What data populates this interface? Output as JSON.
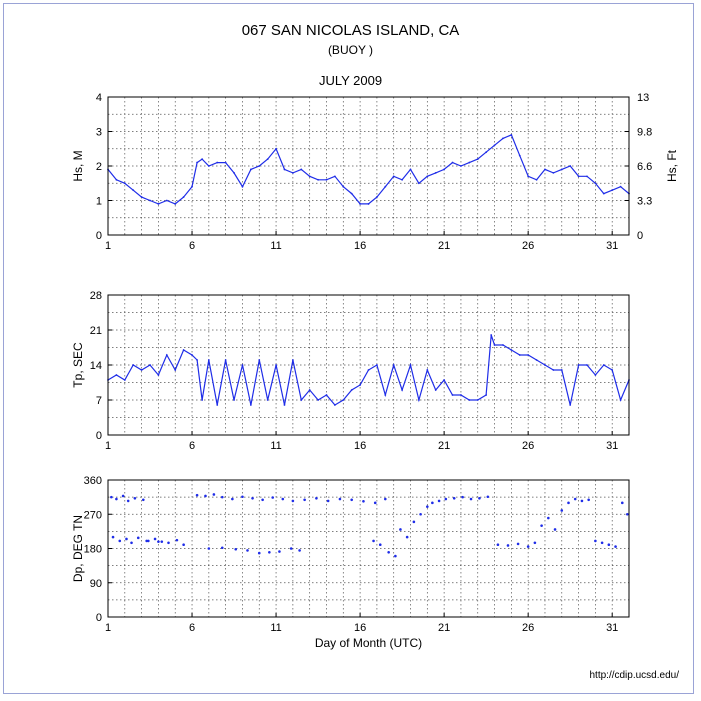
{
  "header": {
    "station": "067 SAN NICOLAS ISLAND, CA",
    "subtitle": "(BUOY )",
    "month": "JULY 2009"
  },
  "footer": {
    "credit": "http://cdip.ucsd.edu/"
  },
  "colors": {
    "series": "#1f2de8",
    "grid": "#555555",
    "axis": "#000000"
  },
  "chart_data": [
    {
      "type": "line",
      "ylabel": "Hs, M",
      "ylabel_right": "Hs, Ft",
      "xlim": [
        1,
        32
      ],
      "ylim": [
        0,
        4
      ],
      "yticks": [
        0,
        1,
        2,
        3,
        4
      ],
      "yticks_right_labels": [
        "0",
        "3.3",
        "6.6",
        "9.8",
        "13"
      ],
      "xticks": [
        1,
        6,
        11,
        16,
        21,
        26,
        31
      ],
      "grid": true,
      "x": [
        1,
        1.5,
        2,
        2.5,
        3,
        3.5,
        4,
        4.5,
        5,
        5.5,
        6,
        6.3,
        6.6,
        7,
        7.5,
        8,
        8.5,
        9,
        9.5,
        10,
        10.5,
        11,
        11.5,
        12,
        12.5,
        13,
        13.5,
        14,
        14.5,
        15,
        15.5,
        16,
        16.5,
        17,
        17.5,
        18,
        18.5,
        19,
        19.5,
        20,
        20.5,
        21,
        21.5,
        22,
        22.5,
        23,
        23.5,
        24,
        24.5,
        25,
        25.5,
        26,
        26.5,
        27,
        27.5,
        28,
        28.5,
        29,
        29.5,
        30,
        30.5,
        31,
        31.5,
        32
      ],
      "y": [
        1.9,
        1.6,
        1.5,
        1.3,
        1.1,
        1.0,
        0.9,
        1.0,
        0.9,
        1.1,
        1.4,
        2.1,
        2.2,
        2.0,
        2.1,
        2.1,
        1.8,
        1.4,
        1.9,
        2.0,
        2.2,
        2.5,
        1.9,
        1.8,
        1.9,
        1.7,
        1.6,
        1.6,
        1.7,
        1.4,
        1.2,
        0.9,
        0.9,
        1.1,
        1.4,
        1.7,
        1.6,
        1.9,
        1.5,
        1.7,
        1.8,
        1.9,
        2.1,
        2.0,
        2.1,
        2.2,
        2.4,
        2.6,
        2.8,
        2.9,
        2.3,
        1.7,
        1.6,
        1.9,
        1.8,
        1.9,
        2.0,
        1.7,
        1.7,
        1.5,
        1.2,
        1.3,
        1.4,
        1.2
      ]
    },
    {
      "type": "line",
      "ylabel": "Tp, SEC",
      "xlim": [
        1,
        32
      ],
      "ylim": [
        0,
        28
      ],
      "yticks": [
        0,
        7,
        14,
        21,
        28
      ],
      "xticks": [
        1,
        6,
        11,
        16,
        21,
        26,
        31
      ],
      "grid": true,
      "x": [
        1,
        1.5,
        2,
        2.5,
        3,
        3.5,
        4,
        4.5,
        5,
        5.5,
        6,
        6.3,
        6.6,
        7,
        7.5,
        8,
        8.5,
        9,
        9.5,
        10,
        10.5,
        11,
        11.5,
        12,
        12.5,
        13,
        13.5,
        14,
        14.5,
        15,
        15.5,
        16,
        16.5,
        17,
        17.5,
        18,
        18.5,
        19,
        19.5,
        20,
        20.5,
        21,
        21.5,
        22,
        22.5,
        23,
        23.5,
        23.8,
        24,
        24.5,
        25,
        25.5,
        26,
        26.5,
        27,
        27.5,
        28,
        28.5,
        29,
        29.5,
        30,
        30.5,
        31,
        31.5,
        32
      ],
      "y": [
        11,
        12,
        11,
        14,
        13,
        14,
        12,
        16,
        13,
        17,
        16,
        15,
        7,
        15,
        6,
        15,
        7,
        14,
        6,
        15,
        7,
        14,
        6,
        15,
        7,
        9,
        7,
        8,
        6,
        7,
        9,
        10,
        13,
        14,
        8,
        14,
        9,
        14,
        7,
        13,
        9,
        11,
        8,
        8,
        7,
        7,
        8,
        20,
        18,
        18,
        17,
        16,
        16,
        15,
        14,
        13,
        13,
        6,
        14,
        14,
        12,
        14,
        13,
        7,
        11
      ]
    },
    {
      "type": "scatter",
      "ylabel": "Dp, DEG TN",
      "xlabel": "Day of Month (UTC)",
      "xlim": [
        1,
        32
      ],
      "ylim": [
        0,
        360
      ],
      "yticks": [
        0,
        90,
        180,
        270,
        360
      ],
      "xticks": [
        1,
        6,
        11,
        16,
        21,
        26,
        31
      ],
      "grid": true,
      "x": [
        1.2,
        1.5,
        1.9,
        2.2,
        2.6,
        3.1,
        3.4,
        3.8,
        4.2,
        4.6,
        5.1,
        5.5,
        1.3,
        1.7,
        2.1,
        2.4,
        2.8,
        3.3,
        4.0,
        6.3,
        6.8,
        7.3,
        7.8,
        8.4,
        9.0,
        9.6,
        10.2,
        10.8,
        11.4,
        12.0,
        12.7,
        13.4,
        14.1,
        14.8,
        15.5,
        16.2,
        16.9,
        17.5,
        7.0,
        7.8,
        8.6,
        9.3,
        10.0,
        10.6,
        11.2,
        11.9,
        12.4,
        16.8,
        17.2,
        17.7,
        18.1,
        18.4,
        18.8,
        19.2,
        19.6,
        20.0,
        20.3,
        20.7,
        21.1,
        21.6,
        22.1,
        22.6,
        23.1,
        23.6,
        24.2,
        24.8,
        25.4,
        26.0,
        26.4,
        26.8,
        27.2,
        27.6,
        28.0,
        28.4,
        28.8,
        29.2,
        29.6,
        30.0,
        30.4,
        30.8,
        31.2,
        31.6,
        31.9
      ],
      "y": [
        315,
        310,
        318,
        305,
        312,
        308,
        200,
        205,
        198,
        195,
        202,
        190,
        210,
        200,
        205,
        195,
        208,
        200,
        198,
        320,
        318,
        322,
        315,
        310,
        316,
        312,
        308,
        314,
        310,
        305,
        308,
        312,
        305,
        310,
        308,
        304,
        300,
        310,
        180,
        182,
        178,
        175,
        168,
        170,
        172,
        180,
        175,
        200,
        190,
        170,
        160,
        230,
        210,
        250,
        270,
        290,
        300,
        305,
        310,
        312,
        315,
        310,
        312,
        316,
        190,
        188,
        192,
        185,
        195,
        240,
        260,
        230,
        280,
        300,
        310,
        305,
        308,
        200,
        195,
        190,
        185,
        300,
        270
      ]
    }
  ]
}
